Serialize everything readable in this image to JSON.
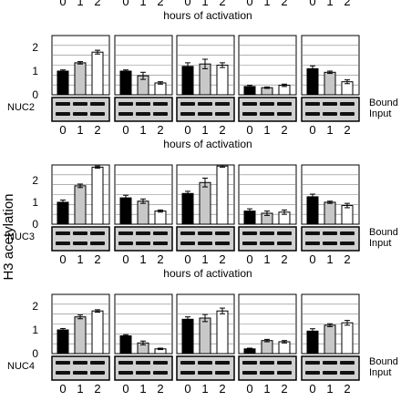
{
  "figure": {
    "y_axis_label": "H3 acetylation",
    "top_strip_ticks": [
      "0",
      "1",
      "2",
      "0",
      "1",
      "2",
      "0",
      "1",
      "2",
      "0",
      "1",
      "2",
      "0",
      "1",
      "2"
    ],
    "top_strip_xlabel": "hours of activation"
  },
  "colors": {
    "bar_fills": [
      "#000000",
      "#c8c8c8",
      "#ffffff"
    ],
    "bar_stroke": "#000000",
    "grid": "#808080",
    "gel_background": "#d0d0d0",
    "gel_band": "#111111"
  },
  "chart_data": [
    {
      "type": "bar",
      "name": "NUC2",
      "categories": [
        "0",
        "1",
        "2"
      ],
      "ylim": [
        0,
        2.5
      ],
      "yticks": [
        "0",
        "1",
        "2"
      ],
      "xlabel": "hours of activation",
      "ylabel": "H3 acetylation",
      "grid": true,
      "gel_labels": [
        "Bound",
        "Input"
      ],
      "groups": [
        {
          "values": [
            1.0,
            1.35,
            1.8
          ],
          "errors": [
            0.05,
            0.05,
            0.08
          ]
        },
        {
          "values": [
            1.0,
            0.8,
            0.5
          ],
          "errors": [
            0.05,
            0.15,
            0.05
          ]
        },
        {
          "values": [
            1.2,
            1.3,
            1.25
          ],
          "errors": [
            0.15,
            0.2,
            0.1
          ]
        },
        {
          "values": [
            0.35,
            0.3,
            0.4
          ],
          "errors": [
            0.05,
            0.03,
            0.05
          ]
        },
        {
          "values": [
            1.1,
            0.95,
            0.55
          ],
          "errors": [
            0.12,
            0.05,
            0.08
          ]
        }
      ]
    },
    {
      "type": "bar",
      "name": "NUC3",
      "categories": [
        "0",
        "1",
        "2"
      ],
      "ylim": [
        0,
        2.7
      ],
      "yticks": [
        "0",
        "1",
        "2"
      ],
      "xlabel": "hours of activation",
      "ylabel": "H3 acetylation",
      "grid": true,
      "gel_labels": [
        "Bound",
        "Input"
      ],
      "groups": [
        {
          "values": [
            1.0,
            1.75,
            2.6
          ],
          "errors": [
            0.1,
            0.08,
            0.05
          ]
        },
        {
          "values": [
            1.2,
            1.05,
            0.6
          ],
          "errors": [
            0.12,
            0.1,
            0.05
          ]
        },
        {
          "values": [
            1.4,
            1.9,
            2.65
          ],
          "errors": [
            0.1,
            0.2,
            0.05
          ]
        },
        {
          "values": [
            0.6,
            0.5,
            0.55
          ],
          "errors": [
            0.1,
            0.1,
            0.1
          ]
        },
        {
          "values": [
            1.25,
            1.0,
            0.85
          ],
          "errors": [
            0.12,
            0.05,
            0.1
          ]
        }
      ]
    },
    {
      "type": "bar",
      "name": "NUC4",
      "categories": [
        "0",
        "1",
        "2"
      ],
      "ylim": [
        0,
        2.5
      ],
      "yticks": [
        "0",
        "1",
        "2"
      ],
      "xlabel": "",
      "ylabel": "H3 acetylation",
      "grid": true,
      "gel_labels": [
        "Bound",
        "Input"
      ],
      "groups": [
        {
          "values": [
            1.0,
            1.55,
            1.8
          ],
          "errors": [
            0.06,
            0.08,
            0.05
          ]
        },
        {
          "values": [
            0.75,
            0.45,
            0.2
          ],
          "errors": [
            0.05,
            0.08,
            0.03
          ]
        },
        {
          "values": [
            1.45,
            1.5,
            1.8
          ],
          "errors": [
            0.1,
            0.15,
            0.12
          ]
        },
        {
          "values": [
            0.2,
            0.55,
            0.5
          ],
          "errors": [
            0.03,
            0.05,
            0.05
          ]
        },
        {
          "values": [
            0.95,
            1.2,
            1.3
          ],
          "errors": [
            0.1,
            0.06,
            0.1
          ]
        }
      ]
    }
  ]
}
